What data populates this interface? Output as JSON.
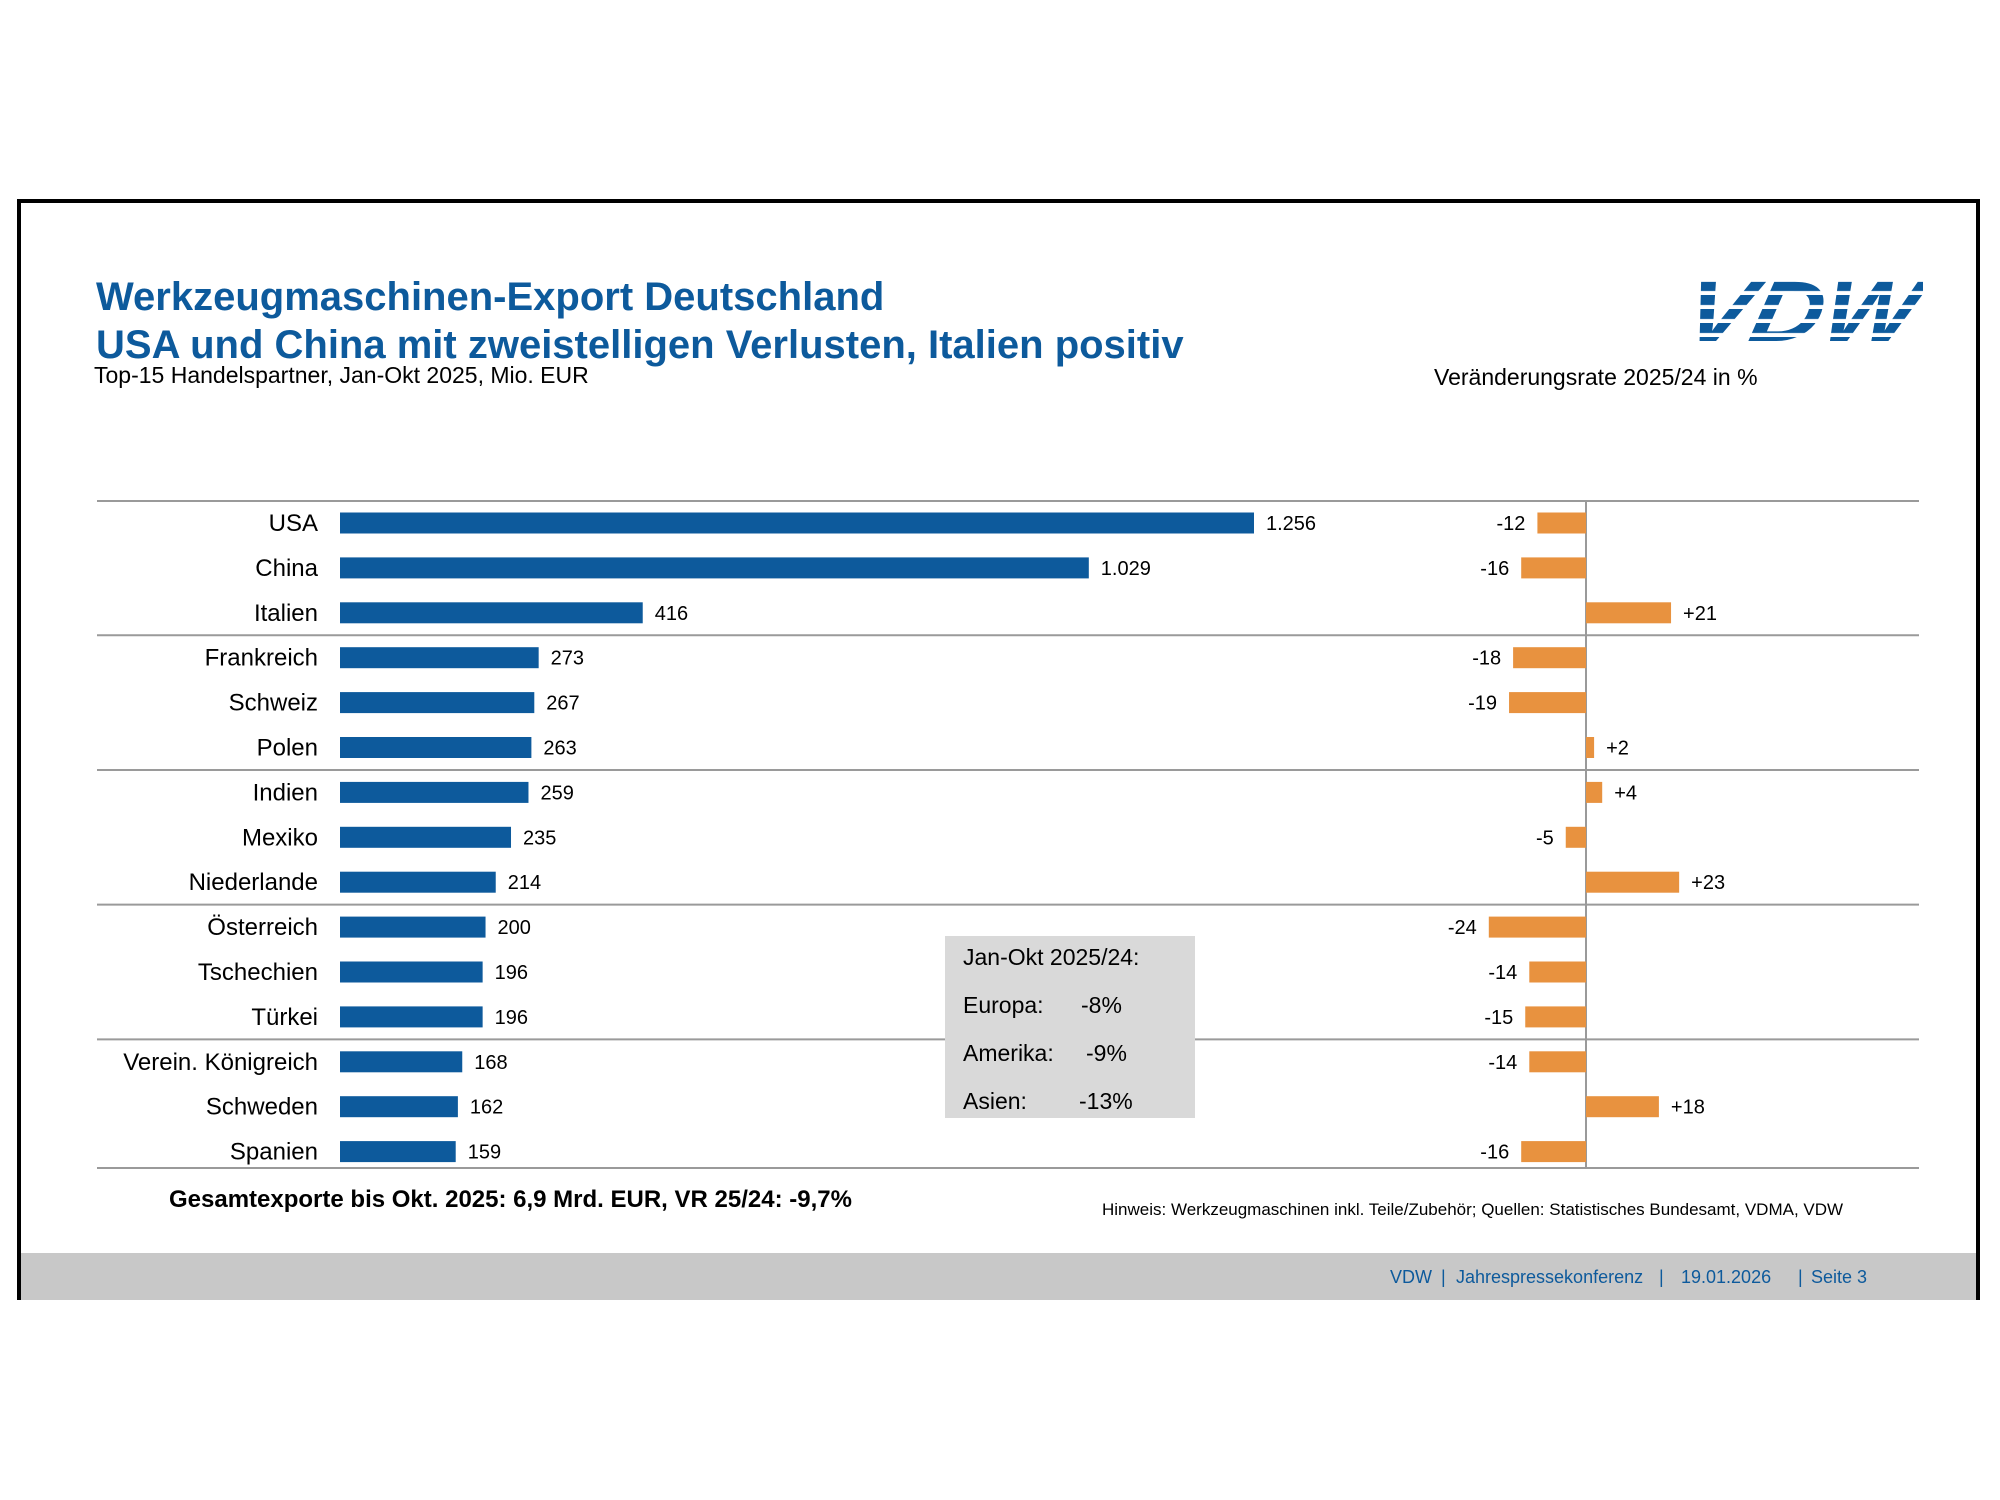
{
  "header": {
    "title": "Werkzeugmaschinen-Export Deutschland",
    "subtitle": "USA und China mit zweistelligen Verlusten, Italien positiv",
    "logo_text": "VDW"
  },
  "colors": {
    "title": "#0d5a9c",
    "bar_left": "#0d5a9c",
    "bar_right": "#e8923f",
    "grid": "#9a9a9a",
    "footer_bg": "#c8c8c8",
    "infobox_bg": "#d9d9d9"
  },
  "chart_data": [
    {
      "type": "bar",
      "orientation": "horizontal",
      "title": "Top-15 Handelspartner, Jan-Okt 2025, Mio. EUR",
      "categories": [
        "USA",
        "China",
        "Italien",
        "Frankreich",
        "Schweiz",
        "Polen",
        "Indien",
        "Mexiko",
        "Niederlande",
        "Österreich",
        "Tschechien",
        "Türkei",
        "Verein. Königreich",
        "Schweden",
        "Spanien"
      ],
      "values": [
        1256,
        1029,
        416,
        273,
        267,
        263,
        259,
        235,
        214,
        200,
        196,
        196,
        168,
        162,
        159
      ],
      "value_labels": [
        "1.256",
        "1.029",
        "416",
        "273",
        "267",
        "263",
        "259",
        "235",
        "214",
        "200",
        "196",
        "196",
        "168",
        "162",
        "159"
      ],
      "xlim": [
        0,
        1256
      ]
    },
    {
      "type": "bar",
      "orientation": "horizontal",
      "title": "Veränderungsrate 2025/24 in %",
      "categories": [
        "USA",
        "China",
        "Italien",
        "Frankreich",
        "Schweiz",
        "Polen",
        "Indien",
        "Mexiko",
        "Niederlande",
        "Österreich",
        "Tschechien",
        "Türkei",
        "Verein. Königreich",
        "Schweden",
        "Spanien"
      ],
      "values": [
        -12,
        -16,
        21,
        -18,
        -19,
        2,
        4,
        -5,
        23,
        -24,
        -14,
        -15,
        -14,
        18,
        -16
      ],
      "value_labels": [
        "-12",
        "-16",
        "+21",
        "-18",
        "-19",
        "+2",
        "+4",
        "-5",
        "+23",
        "-24",
        "-14",
        "-15",
        "-14",
        "+18",
        "-16"
      ],
      "xlim": [
        -24,
        23
      ]
    }
  ],
  "infobox": {
    "heading": "Jan-Okt 2025/24:",
    "rows": [
      {
        "label": "Europa:",
        "value": "-8%"
      },
      {
        "label": "Amerika:",
        "value": "-9%"
      },
      {
        "label": "Asien:",
        "value": "-13%"
      }
    ]
  },
  "summary": "Gesamtexporte bis Okt. 2025: 6,9 Mrd. EUR, VR 25/24: -9,7%",
  "note": "Hinweis: Werkzeugmaschinen inkl. Teile/Zubehör; Quellen: Statistisches Bundesamt, VDMA, VDW",
  "footer": {
    "org": "VDW",
    "event": "Jahrespressekonferenz",
    "date": "19.01.2026",
    "page": "Seite  3",
    "sep": "|"
  }
}
